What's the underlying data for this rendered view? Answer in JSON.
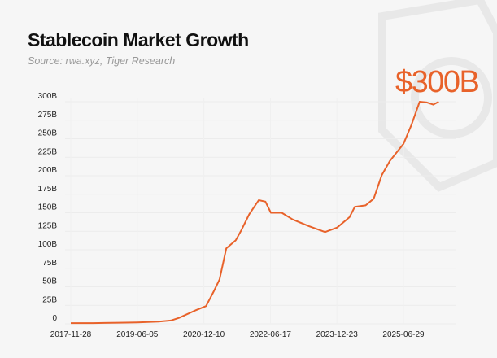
{
  "chart_data": {
    "type": "line",
    "title": "Stablecoin Market Growth",
    "subtitle": "Source: rwa.xyz, Tiger Research",
    "annotation": "$300B",
    "xlabel": "",
    "ylabel": "",
    "ylim": [
      0,
      300
    ],
    "y_ticks": [
      0,
      25,
      50,
      75,
      100,
      125,
      150,
      175,
      200,
      225,
      250,
      275,
      300
    ],
    "y_tick_labels": [
      "0",
      "25B",
      "50B",
      "75B",
      "100B",
      "125B",
      "150B",
      "175B",
      "200B",
      "225B",
      "250B",
      "275B",
      "300B"
    ],
    "x_tick_labels": [
      "2017-11-28",
      "2019-06-05",
      "2020-12-10",
      "2022-06-17",
      "2023-12-23",
      "2025-06-29"
    ],
    "grid": true,
    "line_color": "#e8622a",
    "series": [
      {
        "x": [
          "2017-11-28",
          "2018-06-01",
          "2019-01-01",
          "2019-06-05",
          "2019-12-01",
          "2020-03-10",
          "2020-05-17",
          "2020-09-29",
          "2020-12-28",
          "2021-03-06",
          "2021-04-20",
          "2021-06-15",
          "2021-09-02",
          "2021-10-17",
          "2021-12-23",
          "2022-03-12",
          "2022-05-07",
          "2022-06-21",
          "2022-09-20",
          "2022-12-19",
          "2023-05-03",
          "2023-09-15",
          "2023-12-25",
          "2024-04-05",
          "2024-05-20",
          "2024-08-18",
          "2024-10-24",
          "2024-12-31",
          "2025-03-08",
          "2025-06-29",
          "2025-09-04",
          "2025-11-11",
          "2026-01-10",
          "2026-03-04",
          "2026-04-18"
        ],
        "values": [
          1,
          1,
          1.5,
          2,
          3,
          4.5,
          8,
          18,
          24,
          45,
          60,
          102,
          113,
          126,
          148,
          167,
          165,
          150,
          150,
          141,
          132,
          124,
          130,
          144,
          158,
          160,
          169,
          201,
          220,
          243,
          269,
          300,
          299,
          296,
          300
        ]
      }
    ]
  }
}
